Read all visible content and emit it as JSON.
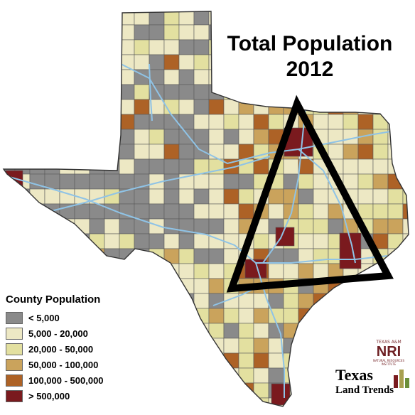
{
  "title": {
    "line1": "Total Population",
    "line2": "2012"
  },
  "legend": {
    "title": "County Population",
    "items": [
      {
        "label": "< 5,000",
        "color": "#8a8a8a"
      },
      {
        "label": "5,000 - 20,000",
        "color": "#ede8c4"
      },
      {
        "label": "20,000 - 50,000",
        "color": "#e3e0a0"
      },
      {
        "label": "50,000 - 100,000",
        "color": "#caa35c"
      },
      {
        "label": "100,000 - 500,000",
        "color": "#ad6226"
      },
      {
        "label": "> 500,000",
        "color": "#7a1a1e"
      }
    ]
  },
  "logos": {
    "nri_top": "TEXAS A&M",
    "nri_main": "NRI",
    "nri_sub": "NATURAL RESOURCES INSTITUTE",
    "tlt_line1": "Texas",
    "tlt_line2": "Land Trends"
  },
  "colors": {
    "highway": "#8fc3e6",
    "county_border": "#5a5a5a",
    "triangle": "#000000"
  }
}
